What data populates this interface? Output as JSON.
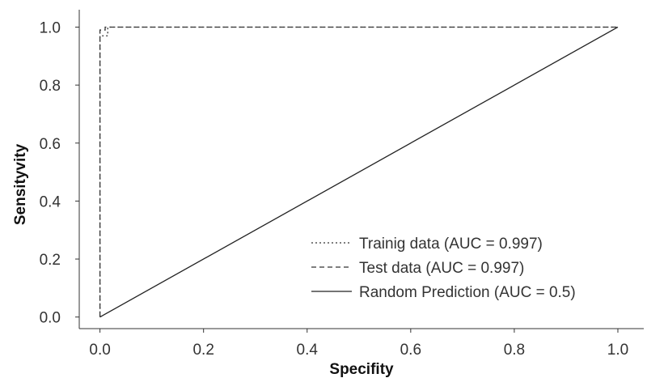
{
  "chart_data": {
    "type": "line",
    "xlabel": "Specifity",
    "ylabel": "Sensityvity",
    "xlim": [
      -0.04,
      1.05
    ],
    "ylim": [
      -0.04,
      1.06
    ],
    "x_ticks": [
      "0.0",
      "0.2",
      "0.4",
      "0.6",
      "0.8",
      "1.0"
    ],
    "y_ticks": [
      "0.0",
      "0.2",
      "0.4",
      "0.6",
      "0.8",
      "1.0"
    ],
    "grid": false,
    "legend_position": "lower-right",
    "series": [
      {
        "name": "Trainig data (AUC = 0.997)",
        "style": "dotted",
        "color": "#333333",
        "x": [
          0.0,
          0.0,
          0.015,
          0.015,
          1.0
        ],
        "y": [
          0.0,
          0.97,
          0.97,
          1.0,
          1.0
        ]
      },
      {
        "name": "Test data (AUC = 0.997)",
        "style": "dashed",
        "color": "#333333",
        "x": [
          0.0,
          0.0,
          0.01,
          0.01,
          1.0
        ],
        "y": [
          0.0,
          0.99,
          0.99,
          1.0,
          1.0
        ]
      },
      {
        "name": "Random Prediction (AUC = 0.5)",
        "style": "solid",
        "color": "#222222",
        "x": [
          0.0,
          1.0
        ],
        "y": [
          0.0,
          1.0
        ]
      }
    ]
  }
}
